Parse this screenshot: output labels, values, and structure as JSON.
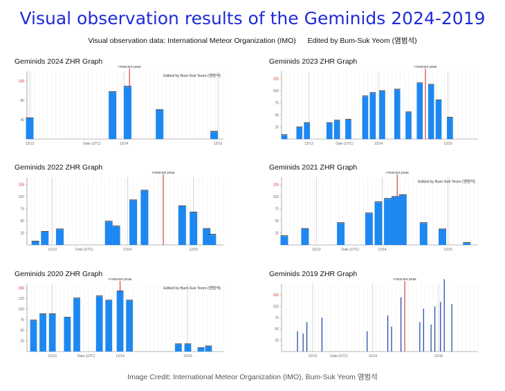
{
  "header": {
    "title": "Visual observation results of the Geminids 2024-2019",
    "source": "Visual observation data: International Meteor Organization (IMO)",
    "editor": "Edited by Bum-Suk Yeom (염범석)"
  },
  "footer": {
    "credit": "Image Credit: International Meteor Organization (IMO), Bum-Suk Yeom 염범석"
  },
  "colors": {
    "bar": "#1e88f0",
    "bar_dark": "#1a3fa8",
    "peak_line": "#d21f1f",
    "title": "#1f2bd6"
  },
  "chart_data": [
    {
      "type": "bar",
      "title": "Geminids 2024 ZHR Graph",
      "ylim": [
        0,
        140
      ],
      "yticks": [
        40,
        80,
        120
      ],
      "red_tick": 120,
      "xlabel": "Date (UTC)",
      "dates": [
        "12/13",
        "12/14",
        "12/15"
      ],
      "date_pos": [
        0.0,
        0.5,
        1.0
      ],
      "xlabel_pos": 0.33,
      "peak": 0.53,
      "peak_label": "Predicted peak",
      "note": "Edited by Bum-Suk Yeom (염범석)",
      "x": [
        0.0,
        0.44,
        0.52,
        0.69,
        0.98
      ],
      "values": [
        43,
        97,
        108,
        60,
        15
      ]
    },
    {
      "type": "bar",
      "title": "Geminids 2023 ZHR Graph",
      "ylim": [
        0,
        140
      ],
      "yticks": [
        25,
        50,
        75,
        100,
        125
      ],
      "red_tick": 125,
      "xlabel": "Date (UTC)",
      "dates": [
        "12/13",
        "12/14",
        "12/15"
      ],
      "date_pos": [
        0.13,
        0.5,
        0.87
      ],
      "xlabel_pos": 0.32,
      "peak": 0.75,
      "peak_label": "Predicted peak",
      "x": [
        0.0,
        0.08,
        0.12,
        0.24,
        0.28,
        0.34,
        0.43,
        0.47,
        0.52,
        0.6,
        0.66,
        0.72,
        0.78,
        0.82,
        0.88,
        0.97
      ],
      "values": [
        8,
        24,
        33,
        33,
        38,
        40,
        88,
        95,
        99,
        102,
        55,
        115,
        112,
        80,
        44,
        0
      ]
    },
    {
      "type": "bar",
      "title": "Geminids 2022 ZHR Graph",
      "ylim": [
        0,
        140
      ],
      "yticks": [
        25,
        50,
        75,
        100,
        125
      ],
      "red_tick": 125,
      "xlabel": "Date (UTC)",
      "dates": [
        "12/13",
        "12/14",
        "12/15"
      ],
      "date_pos": [
        0.12,
        0.52,
        0.87
      ],
      "xlabel_pos": 0.29,
      "peak": 0.71,
      "peak_label": "Predicted peak",
      "x": [
        0.03,
        0.08,
        0.16,
        0.42,
        0.46,
        0.55,
        0.61,
        0.81,
        0.87,
        0.94,
        0.97
      ],
      "values": [
        7,
        27,
        32,
        48,
        38,
        92,
        112,
        80,
        67,
        33,
        21
      ]
    },
    {
      "type": "bar",
      "title": "Geminids 2021 ZHR Graph",
      "ylim": [
        0,
        140
      ],
      "yticks": [
        25,
        50,
        75,
        100,
        125
      ],
      "red_tick": 125,
      "xlabel": "Date (UTC)",
      "dates": [
        "12/13",
        "12/14",
        "12/15"
      ],
      "date_pos": [
        0.17,
        0.52,
        0.87
      ],
      "xlabel_pos": 0.35,
      "peak": 0.6,
      "peak_label": "Predicted peak",
      "note": "Edited by Bum-Suk Yeom (염범석)",
      "x": [
        0.0,
        0.11,
        0.3,
        0.45,
        0.5,
        0.55,
        0.59,
        0.63,
        0.74,
        0.84,
        0.97
      ],
      "values": [
        18,
        33,
        45,
        65,
        88,
        95,
        99,
        103,
        45,
        32,
        4
      ]
    },
    {
      "type": "bar",
      "title": "Geminids 2020 ZHR Graph",
      "ylim": [
        0,
        160
      ],
      "yticks": [
        25,
        50,
        75,
        100,
        125,
        150
      ],
      "red_tick": 150,
      "xlabel": "Date (UTC)",
      "dates": [
        "12/13",
        "12/14",
        "12/15"
      ],
      "date_pos": [
        0.12,
        0.48,
        0.84
      ],
      "xlabel_pos": 0.3,
      "peak": 0.48,
      "peak_label": "Predicted peak",
      "note": "Edited by Bum-Suk Yeom (염범석)",
      "x": [
        0.02,
        0.07,
        0.12,
        0.2,
        0.25,
        0.37,
        0.42,
        0.48,
        0.53,
        0.59,
        0.79,
        0.84,
        0.91,
        0.95
      ],
      "values": [
        73,
        88,
        88,
        80,
        125,
        130,
        120,
        142,
        120,
        0,
        17,
        17,
        8,
        12
      ]
    },
    {
      "type": "bar",
      "title": "Geminids 2019 ZHR Graph",
      "ylim": [
        0,
        150
      ],
      "yticks": [
        25,
        50,
        75,
        100,
        125
      ],
      "red_tick": 125,
      "xlabel": "Date (UTC)",
      "dates": [
        "12/13",
        "12/14",
        "12/15"
      ],
      "date_pos": [
        0.15,
        0.47,
        0.82
      ],
      "xlabel_pos": 0.29,
      "peak": 0.64,
      "peak_label": "Predicted peak",
      "x": [
        0.07,
        0.1,
        0.12,
        0.2,
        0.44,
        0.55,
        0.57,
        0.62,
        0.72,
        0.74,
        0.78,
        0.8,
        0.83,
        0.85,
        0.89
      ],
      "values": [
        45,
        40,
        65,
        75,
        45,
        80,
        55,
        120,
        65,
        95,
        60,
        100,
        110,
        160,
        105
      ]
    }
  ]
}
